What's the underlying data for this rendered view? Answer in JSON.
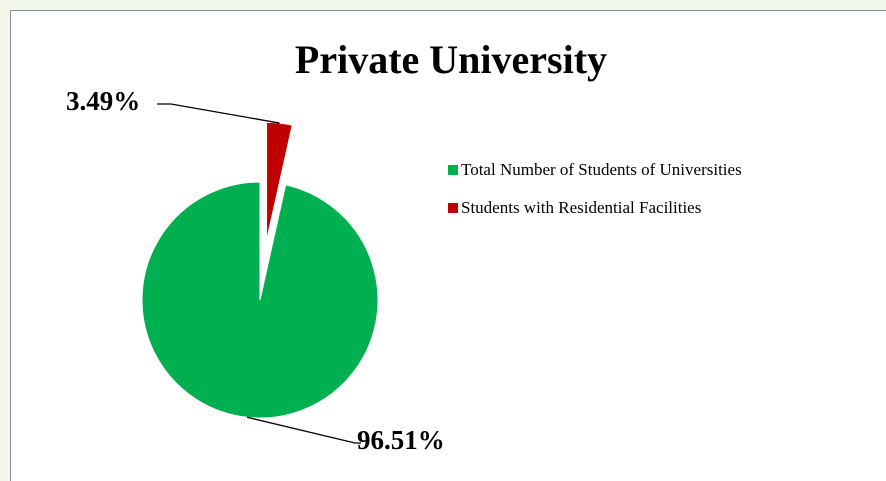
{
  "chart_data": {
    "type": "pie",
    "title": "Private University",
    "categories": [
      "Total Number of Students of Universities",
      "Students with Residential Facilities"
    ],
    "values": [
      96.51,
      3.49
    ],
    "data_labels": [
      "96.51%",
      "3.49%"
    ],
    "colors": [
      "#00b050",
      "#c00000"
    ],
    "exploded": [
      false,
      true
    ],
    "legend_position": "right"
  }
}
